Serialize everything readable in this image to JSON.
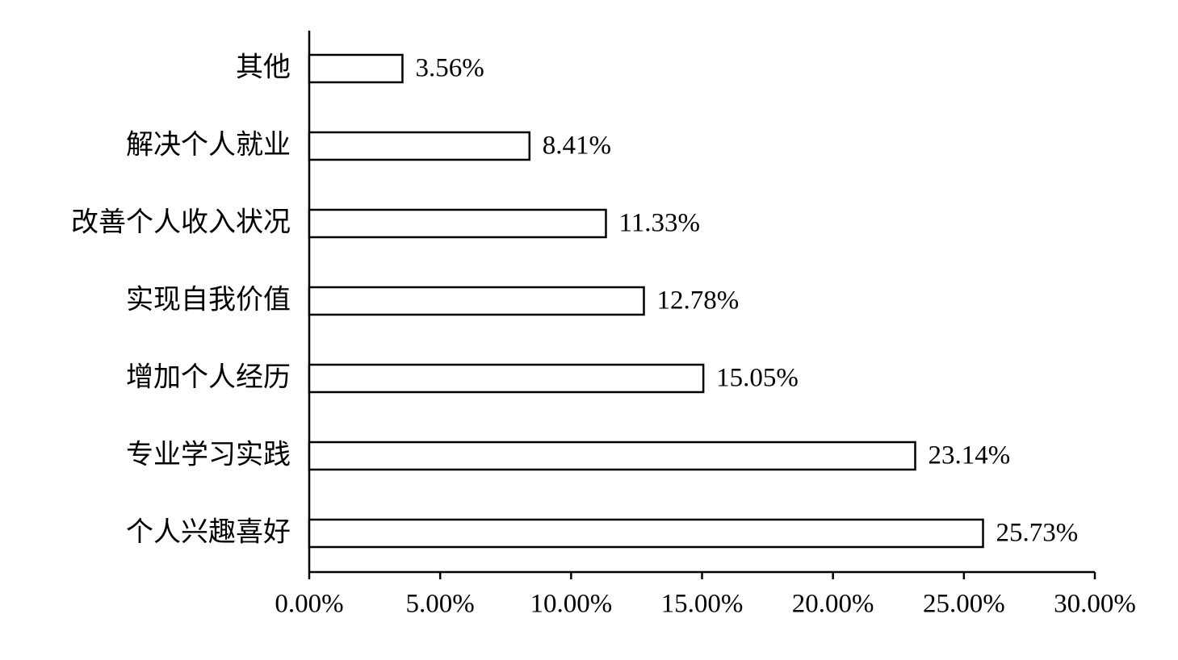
{
  "chart_data": {
    "type": "hbar",
    "categories": [
      "其他",
      "解决个人就业",
      "改善个人收入状况",
      "实现自我价值",
      "增加个人经历",
      "专业学习实践",
      "个人兴趣喜好"
    ],
    "values": [
      3.56,
      8.41,
      11.33,
      12.78,
      15.05,
      23.14,
      25.73
    ],
    "value_labels": [
      "3.56%",
      "8.41%",
      "11.33%",
      "12.78%",
      "15.05%",
      "23.14%",
      "25.73%"
    ],
    "color": "#ffffff",
    "xlim": [
      0,
      30
    ],
    "xticks": [
      {
        "value": 0,
        "label": "0.00%"
      },
      {
        "value": 5,
        "label": "5.00%"
      },
      {
        "value": 10,
        "label": "10.00%"
      },
      {
        "value": 15,
        "label": "15.00%"
      },
      {
        "value": 20,
        "label": "20.00%"
      },
      {
        "value": 25,
        "label": "25.00%"
      },
      {
        "value": 30,
        "label": "30.00%"
      }
    ],
    "grid": false
  }
}
